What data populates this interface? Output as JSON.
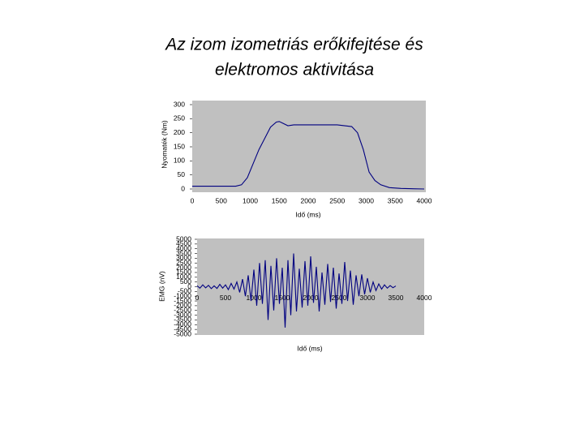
{
  "title": [
    "Az izom izometriás erőkifejtése és",
    "elektromos aktivitása"
  ],
  "chart_data": [
    {
      "type": "line",
      "x_label": "Idő (ms)",
      "y_label": "Nyomaték (Nm)",
      "color": "#000080",
      "x": [
        0,
        250,
        500,
        750,
        850,
        950,
        1050,
        1150,
        1250,
        1350,
        1450,
        1500,
        1550,
        1650,
        1750,
        2000,
        2250,
        2500,
        2750,
        2850,
        2950,
        3050,
        3150,
        3250,
        3400,
        3600,
        4000
      ],
      "values": [
        10,
        10,
        10,
        10,
        15,
        40,
        90,
        140,
        180,
        220,
        238,
        240,
        235,
        225,
        228,
        228,
        228,
        228,
        222,
        200,
        140,
        60,
        30,
        15,
        5,
        2,
        0
      ],
      "xlim": [
        0,
        4000
      ],
      "xticks": [
        0,
        500,
        1000,
        1500,
        2000,
        2500,
        3000,
        3500,
        4000
      ],
      "ylim": [
        0,
        300
      ],
      "yticks": [
        0,
        50,
        100,
        150,
        200,
        250,
        300
      ]
    },
    {
      "type": "line",
      "x_label": "Idő (ms)",
      "y_label": "EMG (nV)",
      "color": "#000080",
      "x": [
        0,
        50,
        100,
        150,
        200,
        250,
        300,
        350,
        400,
        450,
        500,
        550,
        600,
        650,
        700,
        750,
        800,
        850,
        900,
        950,
        1000,
        1050,
        1100,
        1150,
        1200,
        1250,
        1300,
        1350,
        1400,
        1450,
        1500,
        1550,
        1600,
        1650,
        1700,
        1750,
        1800,
        1850,
        1900,
        1950,
        2000,
        2050,
        2100,
        2150,
        2200,
        2250,
        2300,
        2350,
        2400,
        2450,
        2500,
        2550,
        2600,
        2650,
        2700,
        2750,
        2800,
        2850,
        2900,
        2950,
        3000,
        3050,
        3100,
        3150,
        3200,
        3250,
        3300,
        3350,
        3400,
        3450,
        3500
      ],
      "values": [
        100,
        -150,
        200,
        -120,
        150,
        -200,
        100,
        -180,
        250,
        -150,
        200,
        -300,
        350,
        -250,
        500,
        -600,
        800,
        -1000,
        1200,
        -1500,
        1800,
        -2000,
        2500,
        -1800,
        2800,
        -3500,
        2200,
        -2500,
        3000,
        -1800,
        2000,
        -4300,
        2800,
        -3000,
        3500,
        -2600,
        1900,
        -2200,
        2700,
        -2000,
        3200,
        -1700,
        2100,
        -2600,
        1500,
        -1900,
        2400,
        -1600,
        2000,
        -2300,
        1400,
        -1800,
        2600,
        -1500,
        1700,
        -1900,
        1200,
        -1000,
        1300,
        -800,
        900,
        -600,
        500,
        -400,
        300,
        -250,
        200,
        -150,
        120,
        -100,
        80
      ],
      "xlim": [
        0,
        4000
      ],
      "xticks": [
        0,
        500,
        1000,
        1500,
        2000,
        2500,
        3000,
        3500,
        4000
      ],
      "ylim": [
        -5000,
        5000
      ],
      "yticks": [
        -5000,
        -4500,
        -4000,
        -3500,
        -3000,
        -2500,
        -2000,
        -1500,
        -1000,
        -500,
        0,
        500,
        1000,
        1500,
        2000,
        2500,
        3000,
        3500,
        4000,
        4500,
        5000
      ]
    }
  ]
}
